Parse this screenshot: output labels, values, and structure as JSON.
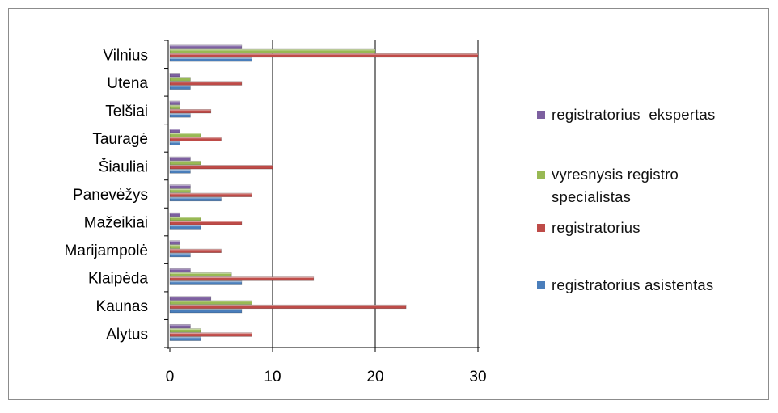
{
  "colors": {
    "registratorius_asistentas": "#4a7ebb",
    "registratorius": "#be4b48",
    "vyresnysis": "#98b954",
    "ekspertas": "#7d60a0",
    "grid": "#000000"
  },
  "chart_data": {
    "type": "bar",
    "orientation": "horizontal",
    "categories": [
      "Alytus",
      "Kaunas",
      "Klaipėda",
      "Marijampolė",
      "Mažeikiai",
      "Panevėžys",
      "Šiauliai",
      "Tauragė",
      "Telšiai",
      "Utena",
      "Vilnius"
    ],
    "series": [
      {
        "name": "registratorius asistentas",
        "values": [
          3,
          7,
          7,
          2,
          3,
          5,
          2,
          1,
          2,
          2,
          8
        ]
      },
      {
        "name": "registratorius",
        "values": [
          8,
          23,
          14,
          5,
          7,
          8,
          10,
          5,
          4,
          7,
          30
        ]
      },
      {
        "name": "vyresnysis registro specialistas",
        "values": [
          3,
          8,
          6,
          1,
          3,
          2,
          3,
          3,
          1,
          2,
          20
        ]
      },
      {
        "name": "registratorius  ekspertas",
        "values": [
          2,
          4,
          2,
          1,
          1,
          2,
          2,
          1,
          1,
          1,
          7
        ]
      }
    ],
    "xlim": [
      0,
      30
    ],
    "xticks": [
      "0",
      "10",
      "20",
      "30"
    ],
    "grid": "vertical major gridlines",
    "legend_position": "right"
  },
  "legend": {
    "items": [
      {
        "label": "registratorius  ekspertas",
        "color": "#7d60a0"
      },
      {
        "label": "vyresnysis registro specialistas",
        "color": "#98b954"
      },
      {
        "label": "registratorius",
        "color": "#be4b48"
      },
      {
        "label": "registratorius asistentas",
        "color": "#4a7ebb"
      }
    ]
  }
}
